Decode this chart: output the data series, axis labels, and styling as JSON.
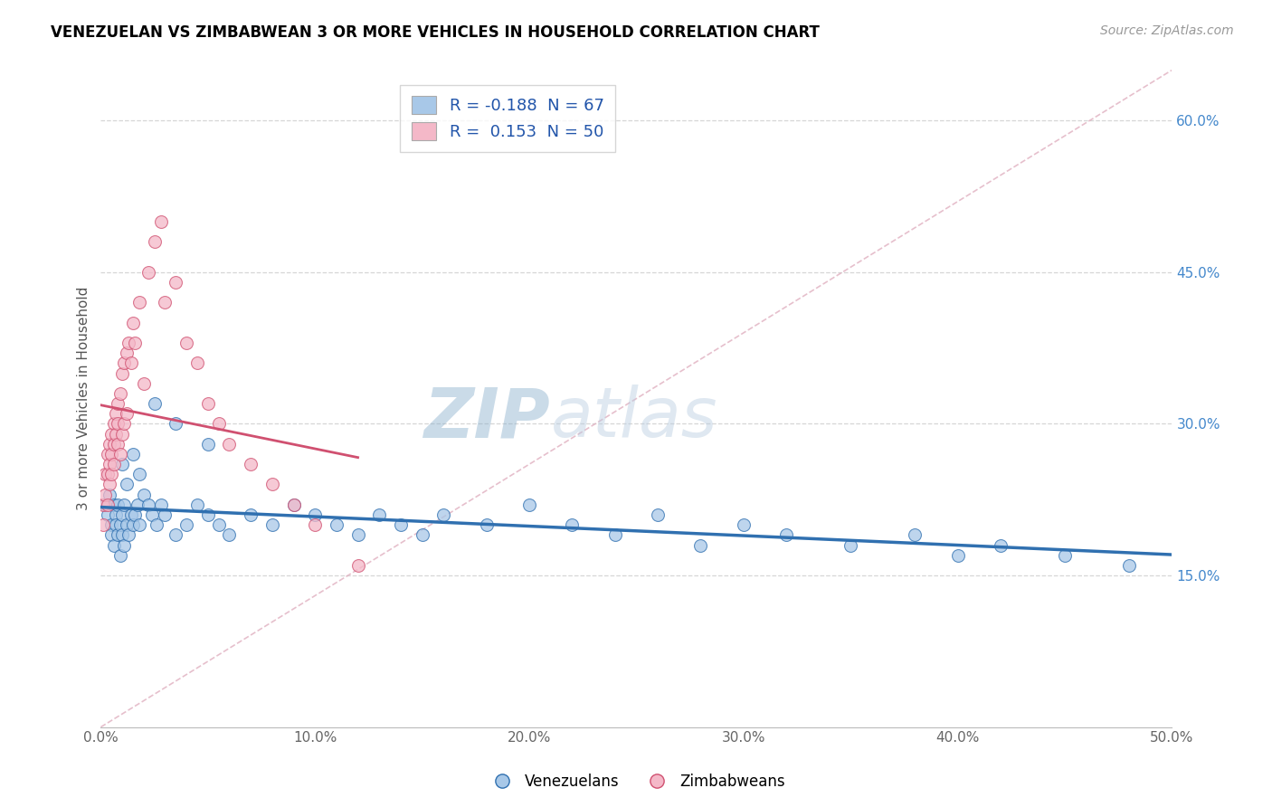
{
  "title": "VENEZUELAN VS ZIMBABWEAN 3 OR MORE VEHICLES IN HOUSEHOLD CORRELATION CHART",
  "source": "Source: ZipAtlas.com",
  "ylabel": "3 or more Vehicles in Household",
  "xlim": [
    0.0,
    0.5
  ],
  "ylim": [
    0.0,
    0.65
  ],
  "xticks": [
    0.0,
    0.1,
    0.2,
    0.3,
    0.4,
    0.5
  ],
  "xtick_labels": [
    "0.0%",
    "10.0%",
    "20.0%",
    "30.0%",
    "40.0%",
    "50.0%"
  ],
  "yticks_right": [
    0.15,
    0.3,
    0.45,
    0.6
  ],
  "ytick_labels_right": [
    "15.0%",
    "30.0%",
    "45.0%",
    "60.0%"
  ],
  "legend_entry1": "R = -0.188  N = 67",
  "legend_entry2": "R =  0.153  N = 50",
  "color_blue": "#a8c8e8",
  "color_pink": "#f4b8c8",
  "line_color_blue": "#3070b0",
  "line_color_pink": "#d05070",
  "line_color_diag": "#e0b0c0",
  "watermark_zip": "ZIP",
  "watermark_atlas": "atlas",
  "venezuelans_x": [
    0.002,
    0.003,
    0.004,
    0.005,
    0.005,
    0.006,
    0.006,
    0.007,
    0.007,
    0.008,
    0.008,
    0.009,
    0.009,
    0.01,
    0.01,
    0.011,
    0.011,
    0.012,
    0.013,
    0.014,
    0.015,
    0.016,
    0.017,
    0.018,
    0.02,
    0.022,
    0.024,
    0.026,
    0.028,
    0.03,
    0.035,
    0.04,
    0.045,
    0.05,
    0.055,
    0.06,
    0.07,
    0.08,
    0.09,
    0.1,
    0.11,
    0.12,
    0.13,
    0.14,
    0.15,
    0.16,
    0.18,
    0.2,
    0.22,
    0.24,
    0.26,
    0.28,
    0.3,
    0.32,
    0.35,
    0.38,
    0.4,
    0.42,
    0.45,
    0.48,
    0.01,
    0.012,
    0.015,
    0.018,
    0.025,
    0.035,
    0.05
  ],
  "venezuelans_y": [
    0.22,
    0.21,
    0.23,
    0.2,
    0.19,
    0.22,
    0.18,
    0.21,
    0.2,
    0.19,
    0.22,
    0.2,
    0.17,
    0.21,
    0.19,
    0.22,
    0.18,
    0.2,
    0.19,
    0.21,
    0.2,
    0.21,
    0.22,
    0.2,
    0.23,
    0.22,
    0.21,
    0.2,
    0.22,
    0.21,
    0.19,
    0.2,
    0.22,
    0.21,
    0.2,
    0.19,
    0.21,
    0.2,
    0.22,
    0.21,
    0.2,
    0.19,
    0.21,
    0.2,
    0.19,
    0.21,
    0.2,
    0.22,
    0.2,
    0.19,
    0.21,
    0.18,
    0.2,
    0.19,
    0.18,
    0.19,
    0.17,
    0.18,
    0.17,
    0.16,
    0.26,
    0.24,
    0.27,
    0.25,
    0.32,
    0.3,
    0.28
  ],
  "zimbabweans_x": [
    0.001,
    0.001,
    0.002,
    0.002,
    0.003,
    0.003,
    0.003,
    0.004,
    0.004,
    0.004,
    0.005,
    0.005,
    0.005,
    0.006,
    0.006,
    0.006,
    0.007,
    0.007,
    0.008,
    0.008,
    0.008,
    0.009,
    0.009,
    0.01,
    0.01,
    0.011,
    0.011,
    0.012,
    0.012,
    0.013,
    0.014,
    0.015,
    0.016,
    0.018,
    0.02,
    0.022,
    0.025,
    0.028,
    0.03,
    0.035,
    0.04,
    0.045,
    0.05,
    0.055,
    0.06,
    0.07,
    0.08,
    0.09,
    0.1,
    0.12
  ],
  "zimbabweans_y": [
    0.22,
    0.2,
    0.25,
    0.23,
    0.27,
    0.25,
    0.22,
    0.28,
    0.26,
    0.24,
    0.29,
    0.27,
    0.25,
    0.3,
    0.28,
    0.26,
    0.31,
    0.29,
    0.32,
    0.3,
    0.28,
    0.33,
    0.27,
    0.35,
    0.29,
    0.36,
    0.3,
    0.37,
    0.31,
    0.38,
    0.36,
    0.4,
    0.38,
    0.42,
    0.34,
    0.45,
    0.48,
    0.5,
    0.42,
    0.44,
    0.38,
    0.36,
    0.32,
    0.3,
    0.28,
    0.26,
    0.24,
    0.22,
    0.2,
    0.16
  ]
}
